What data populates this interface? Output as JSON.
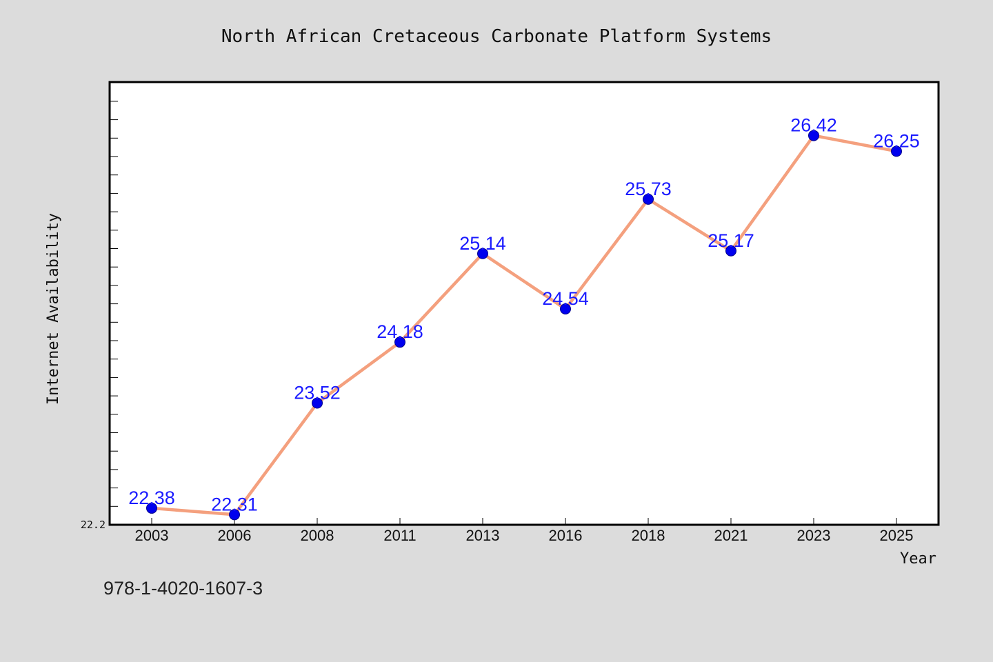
{
  "chart_data": {
    "type": "line",
    "title": "North African Cretaceous Carbonate Platform Systems",
    "xlabel": "Year",
    "ylabel": "Internet Availability",
    "categories": [
      "2003",
      "2006",
      "2008",
      "2011",
      "2013",
      "2016",
      "2018",
      "2021",
      "2023",
      "2025"
    ],
    "series": [
      {
        "values": [
          22.38,
          22.31,
          23.52,
          24.18,
          25.14,
          24.54,
          25.73,
          25.17,
          26.42,
          26.25
        ]
      }
    ],
    "y_tick_labels": [
      "22.2"
    ],
    "ylim": [
      22.2,
      27.0
    ],
    "grid": false,
    "data_labels": true
  },
  "colors": {
    "line": "#f4a07e",
    "marker": "#0000ee",
    "label": "#1a1aff",
    "background": "#dcdcdc",
    "plot_background": "#ffffff"
  },
  "footer": {
    "isbn": "978-1-4020-1607-3"
  }
}
